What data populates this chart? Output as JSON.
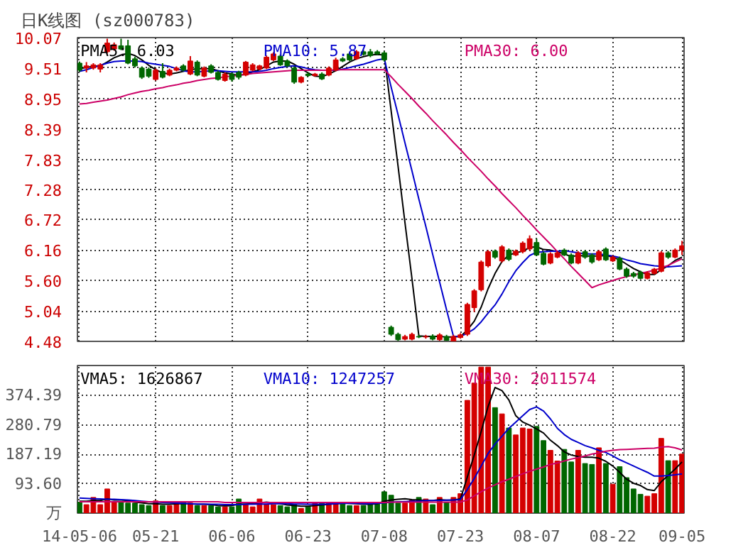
{
  "chart_data": [
    {
      "type": "candlestick",
      "title": "日K线图 (sz000783)",
      "categories": [
        null,
        null,
        null,
        null,
        null,
        null,
        null,
        null,
        null,
        null,
        null,
        null,
        null,
        null,
        null,
        null,
        null,
        null,
        null,
        null,
        null,
        null,
        null,
        null,
        null,
        null,
        null,
        null,
        null,
        null,
        null,
        null,
        null,
        null,
        null,
        null,
        null,
        null,
        null,
        null,
        null,
        null,
        null,
        null,
        null,
        null,
        null,
        null,
        null,
        null,
        null,
        null,
        null,
        null,
        null,
        null,
        null,
        null,
        null,
        null,
        null,
        null,
        null,
        null,
        null,
        null,
        null,
        null,
        null,
        null,
        null,
        null,
        null,
        null,
        null,
        null,
        null,
        null,
        null,
        null,
        null,
        null,
        null,
        null,
        null,
        null,
        null,
        null
      ],
      "ohlc": [
        [
          9.6,
          9.63,
          9.44,
          9.47
        ],
        [
          9.51,
          9.62,
          9.43,
          9.55
        ],
        [
          9.51,
          9.6,
          9.48,
          9.57
        ],
        [
          9.49,
          9.6,
          9.43,
          9.57
        ],
        [
          9.81,
          10.05,
          9.78,
          9.97
        ],
        [
          9.86,
          9.98,
          9.83,
          9.94
        ],
        [
          9.92,
          10.05,
          9.84,
          9.86
        ],
        [
          9.92,
          10.03,
          9.58,
          9.6
        ],
        [
          9.68,
          9.72,
          9.52,
          9.55
        ],
        [
          9.51,
          9.54,
          9.31,
          9.34
        ],
        [
          9.49,
          9.52,
          9.33,
          9.36
        ],
        [
          9.3,
          9.5,
          9.28,
          9.47
        ],
        [
          9.45,
          9.6,
          9.32,
          9.34
        ],
        [
          9.38,
          9.5,
          9.36,
          9.47
        ],
        [
          9.47,
          9.54,
          9.45,
          9.51
        ],
        [
          9.55,
          9.58,
          9.45,
          9.47
        ],
        [
          9.4,
          9.73,
          9.38,
          9.64
        ],
        [
          9.62,
          9.65,
          9.36,
          9.38
        ],
        [
          9.36,
          9.54,
          9.34,
          9.51
        ],
        [
          9.55,
          9.58,
          9.41,
          9.43
        ],
        [
          9.43,
          9.46,
          9.28,
          9.3
        ],
        [
          9.28,
          9.43,
          9.26,
          9.4
        ],
        [
          9.4,
          9.43,
          9.26,
          9.3
        ],
        [
          9.43,
          9.46,
          9.3,
          9.34
        ],
        [
          9.38,
          9.64,
          9.36,
          9.62
        ],
        [
          9.47,
          9.6,
          9.45,
          9.57
        ],
        [
          9.49,
          9.57,
          9.47,
          9.55
        ],
        [
          9.51,
          9.74,
          9.49,
          9.71
        ],
        [
          9.66,
          9.8,
          9.64,
          9.77
        ],
        [
          9.73,
          9.76,
          9.55,
          9.57
        ],
        [
          9.64,
          9.67,
          9.53,
          9.55
        ],
        [
          9.51,
          9.54,
          9.22,
          9.25
        ],
        [
          9.25,
          9.36,
          9.23,
          9.34
        ],
        [
          9.4,
          9.43,
          9.35,
          9.37
        ],
        [
          9.37,
          9.42,
          9.35,
          9.4
        ],
        [
          9.4,
          9.43,
          9.29,
          9.31
        ],
        [
          9.38,
          9.54,
          9.36,
          9.51
        ],
        [
          9.47,
          9.7,
          9.45,
          9.66
        ],
        [
          9.68,
          9.71,
          9.62,
          9.64
        ],
        [
          9.77,
          9.8,
          9.64,
          9.66
        ],
        [
          9.68,
          9.84,
          9.66,
          9.81
        ],
        [
          9.81,
          9.84,
          9.74,
          9.76
        ],
        [
          9.81,
          9.86,
          9.71,
          9.74
        ],
        [
          9.81,
          9.84,
          9.75,
          9.77
        ],
        [
          9.79,
          9.82,
          9.63,
          9.66
        ],
        [
          4.74,
          4.77,
          4.58,
          4.61
        ],
        [
          4.61,
          4.64,
          4.49,
          4.51
        ],
        [
          4.52,
          4.6,
          4.5,
          4.57
        ],
        [
          4.52,
          4.64,
          4.5,
          4.61
        ],
        [
          4.57,
          4.6,
          4.54,
          4.56
        ],
        [
          4.56,
          4.6,
          4.53,
          4.57
        ],
        [
          4.58,
          4.61,
          4.5,
          4.52
        ],
        [
          4.51,
          4.63,
          4.49,
          4.6
        ],
        [
          4.57,
          4.6,
          4.49,
          4.5
        ],
        [
          4.48,
          4.6,
          4.48,
          4.57
        ],
        [
          4.55,
          4.63,
          4.53,
          4.6
        ],
        [
          4.61,
          5.19,
          4.58,
          5.16
        ],
        [
          5.1,
          5.44,
          5.02,
          5.41
        ],
        [
          5.43,
          5.97,
          5.4,
          5.94
        ],
        [
          5.87,
          6.16,
          5.84,
          6.13
        ],
        [
          6.14,
          6.17,
          6.0,
          6.03
        ],
        [
          5.96,
          6.25,
          5.93,
          6.22
        ],
        [
          6.16,
          6.19,
          5.96,
          5.99
        ],
        [
          6.07,
          6.17,
          6.05,
          6.14
        ],
        [
          6.13,
          6.32,
          6.1,
          6.29
        ],
        [
          6.18,
          6.43,
          6.15,
          6.37
        ],
        [
          6.3,
          6.37,
          6.05,
          6.07
        ],
        [
          6.1,
          6.13,
          5.88,
          5.9
        ],
        [
          5.92,
          6.12,
          5.9,
          6.09
        ],
        [
          6.03,
          6.14,
          6.01,
          6.11
        ],
        [
          6.16,
          6.19,
          6.05,
          6.07
        ],
        [
          6.07,
          6.1,
          5.9,
          5.92
        ],
        [
          5.92,
          6.14,
          5.9,
          6.11
        ],
        [
          6.13,
          6.16,
          6.0,
          6.03
        ],
        [
          6.07,
          6.1,
          5.91,
          5.94
        ],
        [
          5.98,
          6.16,
          5.96,
          6.13
        ],
        [
          6.18,
          6.21,
          5.96,
          5.98
        ],
        [
          5.96,
          6.06,
          5.94,
          6.03
        ],
        [
          6.01,
          6.04,
          5.79,
          5.81
        ],
        [
          5.81,
          5.84,
          5.65,
          5.68
        ],
        [
          5.73,
          5.76,
          5.65,
          5.68
        ],
        [
          5.75,
          5.78,
          5.62,
          5.64
        ],
        [
          5.64,
          5.77,
          5.62,
          5.74
        ],
        [
          5.73,
          5.83,
          5.71,
          5.81
        ],
        [
          5.77,
          6.14,
          5.75,
          6.11
        ],
        [
          6.11,
          6.14,
          6.0,
          6.03
        ],
        [
          6.03,
          6.19,
          6.01,
          6.16
        ],
        [
          6.16,
          6.33,
          6.07,
          6.24
        ]
      ],
      "series": [
        {
          "type": "line",
          "name": "PMA5: 6.03",
          "color": "#000000",
          "values": [
            9.5,
            9.52,
            9.54,
            9.55,
            9.62,
            9.7,
            9.75,
            9.78,
            9.74,
            9.66,
            9.56,
            9.48,
            9.42,
            9.4,
            9.42,
            9.45,
            9.48,
            9.5,
            9.5,
            9.5,
            9.46,
            9.42,
            9.4,
            9.37,
            9.4,
            9.44,
            9.48,
            9.55,
            9.62,
            9.64,
            9.64,
            9.58,
            9.5,
            9.42,
            9.36,
            9.35,
            9.4,
            9.46,
            9.54,
            9.62,
            9.68,
            9.72,
            9.75,
            9.76,
            9.75,
            8.72,
            7.7,
            6.66,
            5.64,
            4.58,
            4.57,
            4.57,
            4.57,
            4.56,
            4.56,
            4.57,
            4.69,
            4.85,
            5.11,
            5.45,
            5.73,
            5.95,
            6.07,
            6.11,
            6.14,
            6.21,
            6.22,
            6.17,
            6.16,
            6.13,
            6.09,
            6.04,
            6.06,
            6.05,
            6.05,
            6.05,
            6.06,
            6.03,
            5.98,
            5.9,
            5.82,
            5.76,
            5.71,
            5.71,
            5.8,
            5.87,
            5.97,
            6.03
          ]
        },
        {
          "type": "line",
          "name": "PMA10: 5.87",
          "color": "#0000cc",
          "values": [
            9.45,
            9.48,
            9.52,
            9.56,
            9.6,
            9.63,
            9.64,
            9.64,
            9.64,
            9.63,
            9.6,
            9.58,
            9.56,
            9.54,
            9.5,
            9.46,
            9.44,
            9.44,
            9.45,
            9.46,
            9.46,
            9.45,
            9.44,
            9.44,
            9.44,
            9.44,
            9.45,
            9.47,
            9.5,
            9.52,
            9.54,
            9.55,
            9.53,
            9.5,
            9.48,
            9.47,
            9.47,
            9.47,
            9.49,
            9.52,
            9.55,
            9.58,
            9.62,
            9.66,
            9.68,
            9.16,
            8.65,
            8.13,
            7.62,
            7.1,
            6.6,
            6.08,
            5.57,
            5.06,
            4.57,
            4.57,
            4.63,
            4.71,
            4.84,
            5.0,
            5.15,
            5.35,
            5.58,
            5.78,
            5.93,
            6.06,
            6.12,
            6.13,
            6.14,
            6.14,
            6.15,
            6.13,
            6.11,
            6.09,
            6.09,
            6.09,
            6.07,
            6.05,
            6.02,
            5.98,
            5.95,
            5.91,
            5.89,
            5.87,
            5.86,
            5.85,
            5.86,
            5.87
          ]
        },
        {
          "type": "line",
          "name": "PMA30: 6.00",
          "color": "#cc0066",
          "values": [
            8.85,
            8.86,
            8.88,
            8.9,
            8.92,
            8.95,
            8.98,
            9.02,
            9.05,
            9.08,
            9.1,
            9.13,
            9.15,
            9.18,
            9.2,
            9.23,
            9.25,
            9.28,
            9.3,
            9.32,
            9.33,
            9.35,
            9.36,
            9.38,
            9.39,
            9.41,
            9.42,
            9.43,
            9.44,
            9.45,
            9.46,
            9.47,
            9.47,
            9.47,
            9.47,
            9.47,
            9.47,
            9.48,
            9.48,
            9.48,
            9.48,
            9.48,
            9.48,
            9.48,
            9.48,
            9.35,
            9.21,
            9.08,
            8.95,
            8.81,
            8.68,
            8.54,
            8.41,
            8.28,
            8.14,
            8.01,
            7.87,
            7.74,
            7.61,
            7.47,
            7.34,
            7.2,
            7.07,
            6.94,
            6.8,
            6.67,
            6.53,
            6.4,
            6.27,
            6.13,
            6.0,
            5.86,
            5.73,
            5.6,
            5.47,
            5.52,
            5.56,
            5.6,
            5.64,
            5.67,
            5.7,
            5.73,
            5.76,
            5.79,
            5.83,
            5.88,
            5.94,
            6.0
          ]
        }
      ],
      "ylim": [
        4.48,
        10.07
      ],
      "yticks": [
        4.48,
        5.04,
        {
          "value": 5.6,
          "label": "5.60"
        },
        6.16,
        6.72,
        7.28,
        7.83,
        8.39,
        8.95,
        9.51,
        10.07
      ],
      "grid": true,
      "legend": "top",
      "tick_labels": "y"
    },
    {
      "type": "bar",
      "categories": [
        "14-05-06",
        null,
        null,
        null,
        null,
        null,
        null,
        null,
        null,
        null,
        null,
        "05-21",
        null,
        null,
        null,
        null,
        null,
        null,
        null,
        null,
        null,
        null,
        "06-06",
        null,
        null,
        null,
        null,
        null,
        null,
        null,
        null,
        null,
        null,
        "06-23",
        null,
        null,
        null,
        null,
        null,
        null,
        null,
        null,
        null,
        null,
        "07-08",
        null,
        null,
        null,
        null,
        null,
        null,
        null,
        null,
        null,
        null,
        "07-23",
        null,
        null,
        null,
        null,
        null,
        null,
        null,
        null,
        null,
        null,
        "08-07",
        null,
        null,
        null,
        null,
        null,
        null,
        null,
        null,
        null,
        null,
        "08-22",
        null,
        null,
        null,
        null,
        null,
        null,
        null,
        null,
        null,
        "09-05"
      ],
      "series": [
        {
          "type": "bar",
          "values": [
            35,
            27,
            50,
            27,
            77,
            35,
            35,
            32,
            32,
            27,
            24,
            39,
            24,
            24,
            32,
            35,
            32,
            24,
            24,
            24,
            20,
            20,
            20,
            45,
            27,
            20,
            45,
            27,
            27,
            24,
            20,
            27,
            15,
            20,
            32,
            32,
            32,
            32,
            35,
            24,
            24,
            24,
            35,
            35,
            68,
            57,
            32,
            32,
            42,
            50,
            45,
            27,
            50,
            35,
            50,
            62,
            359,
            414,
            465,
            465,
            336,
            316,
            271,
            249,
            271,
            268,
            276,
            231,
            200,
            166,
            203,
            163,
            200,
            158,
            155,
            208,
            158,
            92,
            148,
            113,
            77,
            60,
            54,
            62,
            238,
            167,
            167,
            188
          ],
          "colors": [
            "#006600",
            "#d40000",
            "#d40000",
            "#d40000",
            "#d40000",
            "#d40000",
            "#006600",
            "#006600",
            "#006600",
            "#006600",
            "#006600",
            "#d40000",
            "#006600",
            "#d40000",
            "#d40000",
            "#006600",
            "#d40000",
            "#006600",
            "#d40000",
            "#006600",
            "#006600",
            "#d40000",
            "#006600",
            "#006600",
            "#d40000",
            "#d40000",
            "#d40000",
            "#d40000",
            "#d40000",
            "#006600",
            "#006600",
            "#006600",
            "#d40000",
            "#006600",
            "#d40000",
            "#006600",
            "#d40000",
            "#d40000",
            "#006600",
            "#006600",
            "#d40000",
            "#006600",
            "#006600",
            "#006600",
            "#006600",
            "#006600",
            "#006600",
            "#d40000",
            "#d40000",
            "#006600",
            "#d40000",
            "#006600",
            "#d40000",
            "#006600",
            "#d40000",
            "#d40000",
            "#d40000",
            "#d40000",
            "#d40000",
            "#d40000",
            "#006600",
            "#d40000",
            "#006600",
            "#d40000",
            "#d40000",
            "#d40000",
            "#006600",
            "#006600",
            "#d40000",
            "#d40000",
            "#006600",
            "#006600",
            "#d40000",
            "#006600",
            "#006600",
            "#d40000",
            "#006600",
            "#d40000",
            "#006600",
            "#006600",
            "#006600",
            "#006600",
            "#d40000",
            "#d40000",
            "#d40000",
            "#006600",
            "#d40000",
            "#d40000"
          ]
        },
        {
          "type": "line",
          "name": "VMA5: 1626867",
          "color": "#000000",
          "values": [
            38,
            38,
            40,
            40,
            45,
            42,
            42,
            40,
            35,
            33,
            30,
            30,
            28,
            28,
            30,
            30,
            30,
            28,
            28,
            27,
            24,
            23,
            24,
            28,
            29,
            30,
            33,
            35,
            33,
            30,
            26,
            24,
            22,
            22,
            24,
            26,
            28,
            30,
            32,
            31,
            30,
            28,
            28,
            30,
            38,
            42,
            44,
            46,
            43,
            42,
            40,
            40,
            43,
            41,
            42,
            45,
            115,
            185,
            260,
            340,
            400,
            390,
            360,
            310,
            290,
            280,
            268,
            255,
            232,
            215,
            195,
            185,
            180,
            178,
            178,
            175,
            165,
            150,
            130,
            108,
            95,
            88,
            75,
            72,
            100,
            120,
            140,
            163
          ]
        },
        {
          "type": "line",
          "name": "VMA10: 1247257",
          "color": "#0000cc",
          "values": [
            48,
            47,
            46,
            45,
            44,
            44,
            43,
            42,
            40,
            38,
            36,
            35,
            34,
            33,
            32,
            31,
            30,
            29,
            29,
            28,
            28,
            27,
            27,
            27,
            28,
            28,
            29,
            29,
            30,
            30,
            30,
            29,
            29,
            28,
            28,
            28,
            29,
            30,
            31,
            31,
            31,
            30,
            30,
            31,
            33,
            35,
            36,
            37,
            38,
            38,
            40,
            40,
            40,
            41,
            42,
            43,
            75,
            110,
            150,
            190,
            220,
            245,
            270,
            290,
            310,
            330,
            338,
            325,
            300,
            270,
            250,
            235,
            225,
            215,
            208,
            200,
            193,
            182,
            170,
            160,
            150,
            140,
            130,
            118,
            118,
            120,
            122,
            125
          ]
        },
        {
          "type": "line",
          "name": "VMA30: 2011574",
          "color": "#cc0066",
          "values": [
            36,
            36,
            36,
            36,
            36,
            36,
            36,
            36,
            36,
            36,
            36,
            36,
            36,
            36,
            36,
            36,
            36,
            36,
            36,
            36,
            36,
            34,
            34,
            34,
            34,
            34,
            34,
            34,
            34,
            34,
            34,
            34,
            34,
            34,
            34,
            34,
            34,
            34,
            34,
            34,
            34,
            34,
            34,
            34,
            34,
            35,
            35,
            35,
            35,
            35,
            35,
            35,
            35,
            35,
            35,
            35,
            42,
            55,
            68,
            80,
            90,
            100,
            108,
            117,
            125,
            133,
            140,
            147,
            155,
            160,
            166,
            172,
            177,
            182,
            188,
            192,
            197,
            200,
            202,
            203,
            204,
            205,
            206,
            207,
            210,
            212,
            208,
            201
          ]
        }
      ],
      "ylim": [
        0,
        470
      ],
      "yticks": [
        {
          "value": 0,
          "label": "万"
        },
        {
          "value": 93.6,
          "label": "93.60"
        },
        187.19,
        280.79,
        374.39
      ],
      "grid": true,
      "legend": "top"
    }
  ]
}
